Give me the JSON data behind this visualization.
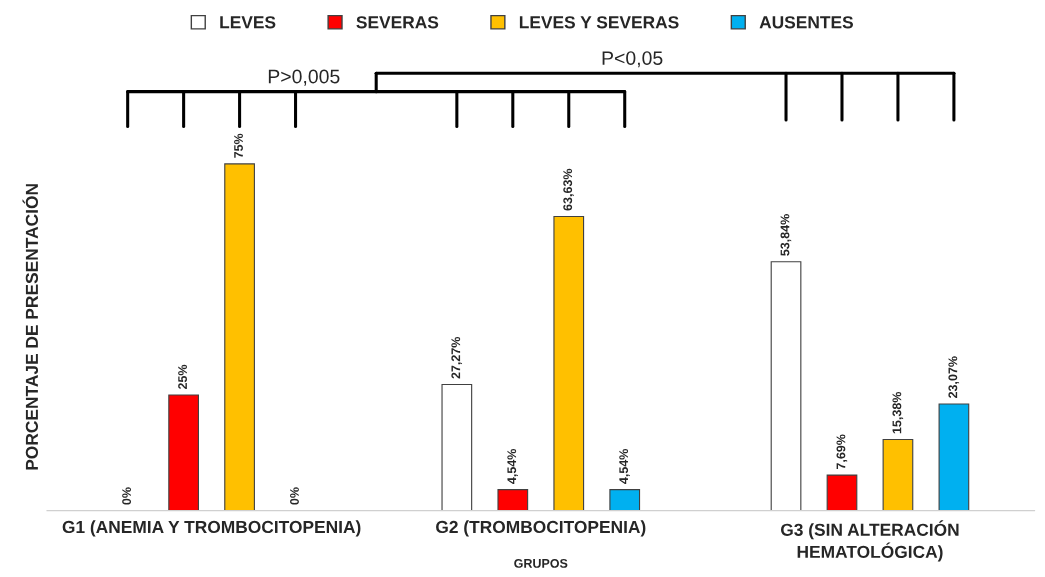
{
  "chart_data": {
    "type": "bar",
    "categories": [
      "G1 (ANEMIA Y TROMBOCITOPENIA)",
      "G2 (TROMBOCITOPENIA)",
      "G3 (SIN ALTERACIÓN\nHEMATOLÓGICA)"
    ],
    "xlabel": "GRUPOS",
    "ylabel": "PORCENTAJE DE PRESENTACIÓN",
    "series": [
      {
        "name": "LEVES",
        "color": "#ffffff",
        "values": [
          0,
          27.27,
          53.84
        ],
        "value_labels": [
          "0%",
          "27,27%",
          "53,84%"
        ]
      },
      {
        "name": "SEVERAS",
        "color": "#ff0000",
        "values": [
          25,
          4.54,
          7.69
        ],
        "value_labels": [
          "25%",
          "4,54%",
          "7,69%"
        ]
      },
      {
        "name": "LEVES Y SEVERAS",
        "color": "#ffc000",
        "values": [
          75,
          63.63,
          15.38
        ],
        "value_labels": [
          "75%",
          "63,63%",
          "15,38%"
        ]
      },
      {
        "name": "AUSENTES",
        "color": "#00b0f0",
        "values": [
          0,
          4.54,
          23.07
        ],
        "value_labels": [
          "0%",
          "4,54%",
          "23,07%"
        ]
      }
    ],
    "annotations": [
      "P>0,005",
      "P<0,05"
    ],
    "legend": "top",
    "tick_labels": "x",
    "grid": false
  }
}
